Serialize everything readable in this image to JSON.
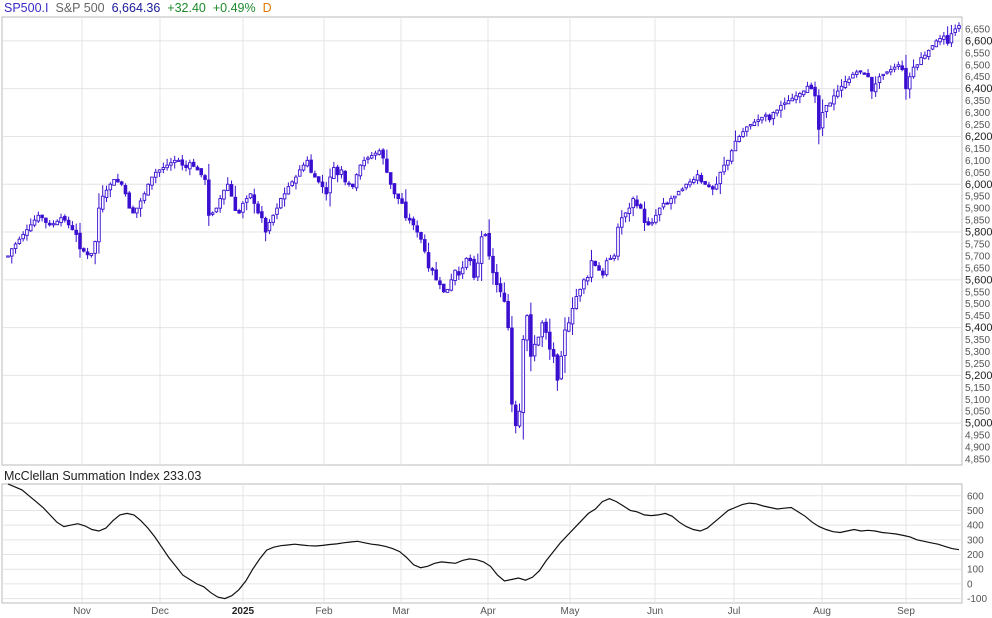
{
  "header": {
    "symbol": "SP500.I",
    "name": "S&P 500",
    "price": "6,664.36",
    "change": "+32.40",
    "percent": "+0.49%",
    "timeframe": "D"
  },
  "indicator": {
    "title": "McClellan Summation Index 233.03"
  },
  "colors": {
    "candle": "#3a0fd0",
    "grid": "#e4e4e4",
    "line": "#111111"
  },
  "chart_data": [
    {
      "type": "candlestick",
      "ylim": [
        4825,
        6700
      ],
      "y_ticks": [
        4850,
        4900,
        4950,
        5000,
        5050,
        5100,
        5150,
        5200,
        5250,
        5300,
        5350,
        5400,
        5450,
        5500,
        5550,
        5600,
        5650,
        5700,
        5750,
        5800,
        5850,
        5900,
        5950,
        6000,
        6050,
        6100,
        6150,
        6200,
        6250,
        6300,
        6350,
        6400,
        6450,
        6500,
        6550,
        6600,
        6650
      ],
      "y_tick_labels": [
        "4,850",
        "4,900",
        "4,950",
        "5,000",
        "5,050",
        "5,100",
        "5,150",
        "5,200",
        "5,250",
        "5,300",
        "5,350",
        "5,400",
        "5,450",
        "5,500",
        "5,550",
        "5,600",
        "5,650",
        "5,700",
        "5,750",
        "5,800",
        "5,850",
        "5,900",
        "5,950",
        "6,000",
        "6,050",
        "6,100",
        "6,150",
        "6,200",
        "6,250",
        "6,300",
        "6,350",
        "6,400",
        "6,450",
        "6,500",
        "6,550",
        "6,600",
        "6,650"
      ],
      "y_major_ticks": [
        5000,
        5200,
        5400,
        5600,
        5800,
        6000,
        6200,
        6400,
        6600
      ],
      "x_labels": [
        "Nov",
        "Dec",
        "2025",
        "Feb",
        "Mar",
        "Apr",
        "May",
        "Jun",
        "Jul",
        "Aug",
        "Sep"
      ],
      "close": [
        5700,
        5730,
        5750,
        5770,
        5790,
        5810,
        5830,
        5850,
        5870,
        5860,
        5840,
        5830,
        5835,
        5845,
        5860,
        5850,
        5830,
        5810,
        5790,
        5730,
        5720,
        5705,
        5710,
        5760,
        5900,
        5950,
        5975,
        6000,
        6020,
        6010,
        6000,
        5960,
        5900,
        5880,
        5900,
        5930,
        5960,
        6000,
        6030,
        6050,
        6060,
        6070,
        6080,
        6090,
        6100,
        6100,
        6080,
        6070,
        6090,
        6075,
        6060,
        6040,
        6020,
        5870,
        5880,
        5900,
        5940,
        5975,
        6000,
        5950,
        5890,
        5880,
        5920,
        5940,
        5960,
        5920,
        5880,
        5860,
        5800,
        5840,
        5870,
        5900,
        5940,
        5960,
        5990,
        6010,
        6030,
        6060,
        6080,
        6100,
        6050,
        6030,
        6010,
        5990,
        5960,
        6030,
        6070,
        6040,
        6060,
        6010,
        6000,
        5990,
        6040,
        6080,
        6100,
        6110,
        6120,
        6130,
        6140,
        6110,
        6050,
        6000,
        5960,
        5940,
        5920,
        5860,
        5850,
        5830,
        5800,
        5770,
        5720,
        5650,
        5640,
        5600,
        5580,
        5550,
        5560,
        5600,
        5640,
        5620,
        5650,
        5690,
        5680,
        5610,
        5670,
        5780,
        5790,
        5700,
        5630,
        5580,
        5550,
        5510,
        5400,
        5080,
        4990,
        5050,
        5350,
        5450,
        5280,
        5330,
        5360,
        5420,
        5380,
        5310,
        5280,
        5180,
        5280,
        5390,
        5420,
        5480,
        5530,
        5560,
        5600,
        5610,
        5680,
        5660,
        5640,
        5620,
        5680,
        5690,
        5700,
        5820,
        5860,
        5880,
        5900,
        5940,
        5910,
        5900,
        5840,
        5830,
        5840,
        5870,
        5900,
        5920,
        5920,
        5940,
        5950,
        5970,
        5980,
        6000,
        6010,
        6020,
        6040,
        6010,
        6000,
        5990,
        5980,
        6000,
        6050,
        6080,
        6100,
        6140,
        6180,
        6200,
        6220,
        6240,
        6250,
        6260,
        6270,
        6280,
        6290,
        6270,
        6300,
        6310,
        6330,
        6340,
        6350,
        6360,
        6370,
        6380,
        6390,
        6410,
        6400,
        6370,
        6230,
        6300,
        6330,
        6340,
        6370,
        6390,
        6410,
        6430,
        6440,
        6460,
        6470,
        6470,
        6460,
        6450,
        6390,
        6420,
        6450,
        6460,
        6470,
        6480,
        6490,
        6500,
        6480,
        6400,
        6450,
        6490,
        6500,
        6530,
        6540,
        6560,
        6580,
        6600,
        6610,
        6620,
        6590,
        6630,
        6650,
        6664
      ]
    },
    {
      "type": "line",
      "title": "McClellan Summation Index 233.03",
      "ylim": [
        -130,
        680
      ],
      "y_ticks": [
        -100,
        0,
        100,
        200,
        300,
        400,
        500,
        600
      ],
      "values": [
        680,
        660,
        640,
        600,
        560,
        520,
        470,
        420,
        390,
        400,
        410,
        395,
        370,
        360,
        380,
        430,
        470,
        480,
        470,
        430,
        380,
        320,
        250,
        180,
        120,
        60,
        30,
        0,
        -20,
        -60,
        -90,
        -100,
        -80,
        -40,
        20,
        100,
        170,
        230,
        250,
        260,
        265,
        270,
        265,
        260,
        258,
        262,
        268,
        272,
        280,
        285,
        290,
        280,
        270,
        265,
        255,
        240,
        220,
        180,
        130,
        110,
        120,
        140,
        150,
        145,
        140,
        160,
        170,
        165,
        150,
        120,
        60,
        20,
        30,
        40,
        25,
        45,
        90,
        160,
        220,
        280,
        330,
        380,
        430,
        480,
        510,
        560,
        580,
        560,
        530,
        500,
        490,
        470,
        465,
        470,
        480,
        460,
        420,
        390,
        370,
        360,
        380,
        420,
        460,
        500,
        520,
        540,
        550,
        545,
        530,
        520,
        510,
        515,
        520,
        490,
        460,
        420,
        390,
        370,
        355,
        350,
        360,
        370,
        360,
        365,
        360,
        350,
        345,
        340,
        330,
        320,
        300,
        290,
        280,
        270,
        255,
        240,
        233
      ]
    }
  ]
}
